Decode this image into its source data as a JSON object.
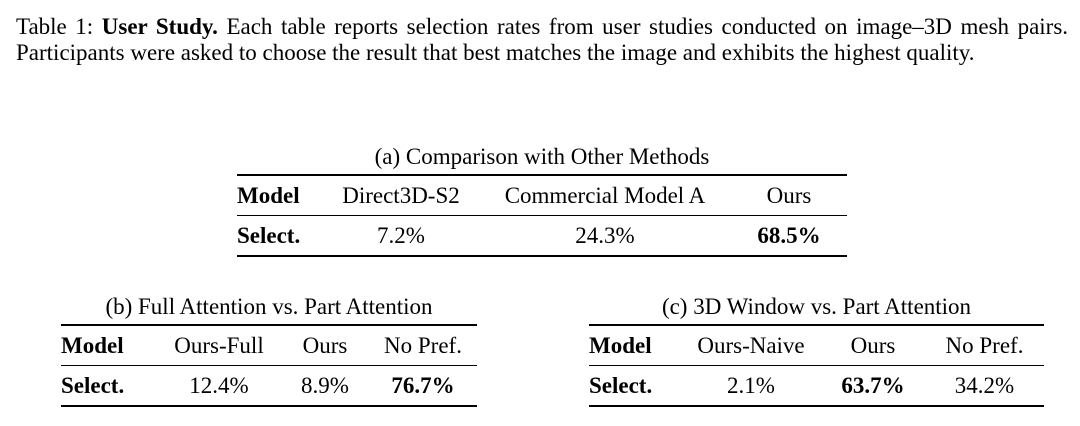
{
  "caption": {
    "label": "Table 1:",
    "title": "User Study.",
    "text": "Each table reports selection rates from user studies conducted on image–3D mesh pairs. Participants were asked to choose the result that best matches the image and exhibits the highest quality."
  },
  "table_a": {
    "title": "(a) Comparison with Other Methods",
    "headers": [
      "Model",
      "Direct3D-S2",
      "Commercial Model A",
      "Ours"
    ],
    "row_label": "Select.",
    "values": [
      "7.2%",
      "24.3%",
      "68.5%"
    ]
  },
  "table_b": {
    "title": "(b) Full Attention vs. Part Attention",
    "headers": [
      "Model",
      "Ours-Full",
      "Ours",
      "No Pref."
    ],
    "row_label": "Select.",
    "values": [
      "12.4%",
      "8.9%",
      "76.7%"
    ]
  },
  "table_c": {
    "title": "(c) 3D Window vs. Part Attention",
    "headers": [
      "Model",
      "Ours-Naive",
      "Ours",
      "No Pref."
    ],
    "row_label": "Select.",
    "values": [
      "2.1%",
      "63.7%",
      "34.2%"
    ]
  }
}
